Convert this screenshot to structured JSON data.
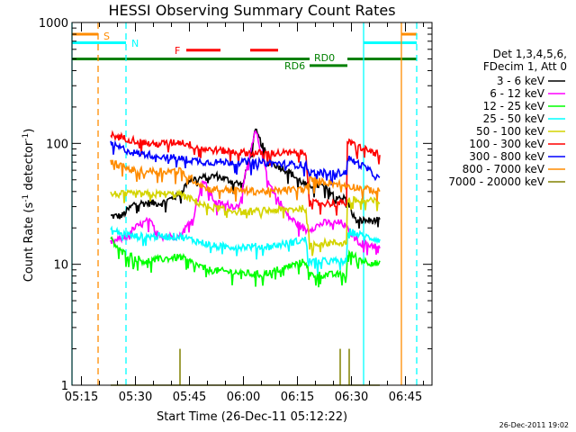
{
  "chart_data": {
    "type": "line",
    "title": "HESSI Observing Summary Count Rates",
    "xlabel": "Start Time (26-Dec-11 05:12:22)",
    "ylabel": "Count Rate (s⁻¹ detector⁻¹)",
    "ylabel_parts": {
      "a": "Count Rate (s",
      "sup1": "-1",
      "b": " detector",
      "sup2": "-1",
      "c": ")"
    },
    "yscale": "log",
    "ylim": [
      1,
      1000
    ],
    "xlim_minutes_from_start": [
      0,
      100
    ],
    "x_ticks": [
      {
        "t": 2.63,
        "label": "05:15"
      },
      {
        "t": 17.63,
        "label": "05:30"
      },
      {
        "t": 32.63,
        "label": "05:45"
      },
      {
        "t": 47.63,
        "label": "06:00"
      },
      {
        "t": 62.63,
        "label": "06:15"
      },
      {
        "t": 77.63,
        "label": "06:30"
      },
      {
        "t": 92.63,
        "label": "06:45"
      }
    ],
    "y_ticks": [
      {
        "v": 1,
        "label": "1"
      },
      {
        "v": 10,
        "label": "10"
      },
      {
        "v": 100,
        "label": "100"
      },
      {
        "v": 1000,
        "label": "1000"
      }
    ],
    "legend": {
      "header": [
        "Det 1,3,4,5,6,",
        "FDecim 1, Att 0"
      ],
      "position": "right"
    },
    "series": [
      {
        "name": "3 - 6 keV",
        "color": "#000000",
        "points": [
          [
            10.75,
            25
          ],
          [
            13.75,
            25
          ],
          [
            17.5,
            32
          ],
          [
            25,
            32
          ],
          [
            30,
            38
          ],
          [
            32.5,
            50
          ],
          [
            40,
            54
          ],
          [
            47.5,
            45
          ],
          [
            51,
            127
          ],
          [
            55,
            70
          ],
          [
            60,
            59
          ],
          [
            65,
            45
          ],
          [
            69,
            45
          ],
          [
            75,
            35
          ],
          [
            76.25,
            35
          ],
          [
            78.75,
            23
          ],
          [
            85.5,
            23
          ]
        ]
      },
      {
        "name": "6 - 12 keV",
        "color": "#ff00ff",
        "points": [
          [
            10.75,
            15
          ],
          [
            15,
            17
          ],
          [
            17.5,
            20
          ],
          [
            21.25,
            23
          ],
          [
            25,
            17
          ],
          [
            30,
            17
          ],
          [
            33.75,
            25
          ],
          [
            36.25,
            50
          ],
          [
            40,
            32
          ],
          [
            46.25,
            30
          ],
          [
            51,
            127
          ],
          [
            55,
            45
          ],
          [
            60,
            25
          ],
          [
            65,
            19
          ],
          [
            70,
            22
          ],
          [
            75,
            22
          ],
          [
            80,
            15
          ],
          [
            85.5,
            14
          ]
        ]
      },
      {
        "name": "12 - 25 keV",
        "color": "#00ff00",
        "points": [
          [
            10.75,
            16
          ],
          [
            13.75,
            12.6
          ],
          [
            20,
            10.6
          ],
          [
            30,
            11.5
          ],
          [
            37.5,
            9
          ],
          [
            52.5,
            8.2
          ],
          [
            65,
            10.6
          ],
          [
            66,
            8.2
          ],
          [
            76.25,
            8.2
          ],
          [
            76.3,
            12.6
          ],
          [
            81.25,
            10.6
          ],
          [
            85.5,
            10
          ]
        ]
      },
      {
        "name": "25 - 50 keV",
        "color": "#00ffff",
        "points": [
          [
            10.75,
            19
          ],
          [
            17.5,
            17
          ],
          [
            30,
            17
          ],
          [
            40,
            14
          ],
          [
            55,
            14
          ],
          [
            65,
            16
          ],
          [
            66,
            10.6
          ],
          [
            76.25,
            10.6
          ],
          [
            76.3,
            19
          ],
          [
            81.25,
            17
          ],
          [
            85.5,
            16
          ]
        ]
      },
      {
        "name": "50 - 100 keV",
        "color": "#d4d400",
        "points": [
          [
            10.75,
            38
          ],
          [
            30,
            38
          ],
          [
            37.5,
            30
          ],
          [
            47.5,
            27
          ],
          [
            65,
            29
          ],
          [
            66,
            15
          ],
          [
            76.25,
            15
          ],
          [
            76.3,
            34
          ],
          [
            85.5,
            33
          ]
        ]
      },
      {
        "name": "100 - 300 keV",
        "color": "#ff0000",
        "points": [
          [
            10.75,
            117
          ],
          [
            22.5,
            98
          ],
          [
            30,
            103
          ],
          [
            37.5,
            89
          ],
          [
            50,
            83
          ],
          [
            65,
            83
          ],
          [
            66,
            32
          ],
          [
            76.25,
            32
          ],
          [
            76.3,
            103
          ],
          [
            81.25,
            90
          ],
          [
            85.5,
            80
          ]
        ]
      },
      {
        "name": "300 - 800 keV",
        "color": "#0000ff",
        "points": [
          [
            10.75,
            98
          ],
          [
            17.5,
            83
          ],
          [
            22.5,
            80
          ],
          [
            37.5,
            70
          ],
          [
            50,
            70
          ],
          [
            65,
            66
          ],
          [
            66,
            57
          ],
          [
            76.25,
            57
          ],
          [
            76.3,
            76
          ],
          [
            81.25,
            64
          ],
          [
            85.5,
            50
          ]
        ]
      },
      {
        "name": "800 - 7000 keV",
        "color": "#ff8c00",
        "points": [
          [
            10.75,
            70
          ],
          [
            17.5,
            59
          ],
          [
            30,
            59
          ],
          [
            37.5,
            42
          ],
          [
            52.5,
            40
          ],
          [
            65,
            42
          ],
          [
            66,
            50
          ],
          [
            76.25,
            45
          ],
          [
            81.25,
            42
          ],
          [
            85.5,
            40
          ]
        ]
      },
      {
        "name": "7000 - 20000 keV",
        "color": "#808000",
        "points": [
          [
            10.75,
            0.9
          ],
          [
            85.5,
            0.9
          ]
        ],
        "spikes": [
          [
            30,
            2.0
          ],
          [
            74.5,
            2.0
          ],
          [
            77,
            2.0
          ]
        ]
      }
    ],
    "annotations": {
      "saa": {
        "label": "S",
        "color": "#ff8c00"
      },
      "night": {
        "label": "N",
        "color": "#00ffff"
      },
      "flare": {
        "label": "F",
        "color": "#ff0000"
      },
      "rd0": {
        "label": "RD0",
        "color": "#008000"
      },
      "rd6": {
        "label": "RD6",
        "color": "#008000"
      }
    },
    "bars": {
      "saa": {
        "value": 800,
        "intervals": [
          [
            0,
            7.25
          ],
          [
            91.5,
            95.75
          ]
        ]
      },
      "night": {
        "value": 680,
        "intervals": [
          [
            0,
            15
          ],
          [
            81,
            95.75
          ]
        ]
      },
      "flare": {
        "value": 590,
        "intervals": [
          [
            31.75,
            41.25
          ],
          [
            49.5,
            57.25
          ]
        ]
      },
      "rd0": {
        "value": 500,
        "intervals": [
          [
            0,
            66
          ],
          [
            76.5,
            95.75
          ]
        ]
      },
      "rd6": {
        "value": 440,
        "intervals": [
          [
            66,
            76.5
          ]
        ]
      }
    },
    "vlines": [
      {
        "t": 0,
        "color": "#00ffff",
        "dashed": false
      },
      {
        "t": 7.25,
        "color": "#ff8c00",
        "dashed": true
      },
      {
        "t": 15,
        "color": "#00ffff",
        "dashed": true
      },
      {
        "t": 81,
        "color": "#00ffff",
        "dashed": false
      },
      {
        "t": 91.5,
        "color": "#ff8c00",
        "dashed": false
      },
      {
        "t": 95.75,
        "color": "#00ffff",
        "dashed": true
      }
    ]
  },
  "footer": {
    "timestamp": "26-Dec-2011 19:02"
  }
}
